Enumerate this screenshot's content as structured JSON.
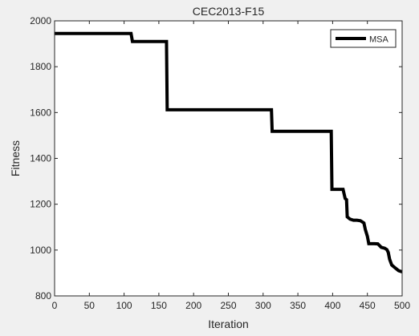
{
  "figure": {
    "background": "#f0f0f0"
  },
  "chart_data": {
    "type": "line",
    "title": "CEC2013-F15",
    "xlabel": "Iteration",
    "ylabel": "Fitness",
    "xlim": [
      0,
      500
    ],
    "ylim": [
      800,
      2000
    ],
    "xticks": [
      0,
      50,
      100,
      150,
      200,
      250,
      300,
      350,
      400,
      450,
      500
    ],
    "yticks": [
      800,
      1000,
      1200,
      1400,
      1600,
      1800,
      2000
    ],
    "grid": false,
    "legend_position": "top-right",
    "series": [
      {
        "name": "MSA",
        "color": "#000000",
        "x": [
          0,
          110,
          112,
          161,
          162,
          312,
          313,
          398,
          399,
          415,
          418,
          420,
          421,
          425,
          430,
          435,
          440,
          445,
          447,
          450,
          452,
          455,
          460,
          465,
          470,
          475,
          478,
          480,
          482,
          485,
          490,
          495,
          500
        ],
        "y": [
          1945,
          1945,
          1910,
          1910,
          1612,
          1612,
          1518,
          1518,
          1265,
          1265,
          1225,
          1220,
          1145,
          1135,
          1130,
          1130,
          1128,
          1118,
          1090,
          1060,
          1028,
          1028,
          1028,
          1027,
          1012,
          1008,
          1002,
          990,
          960,
          935,
          922,
          910,
          905
        ]
      }
    ]
  }
}
